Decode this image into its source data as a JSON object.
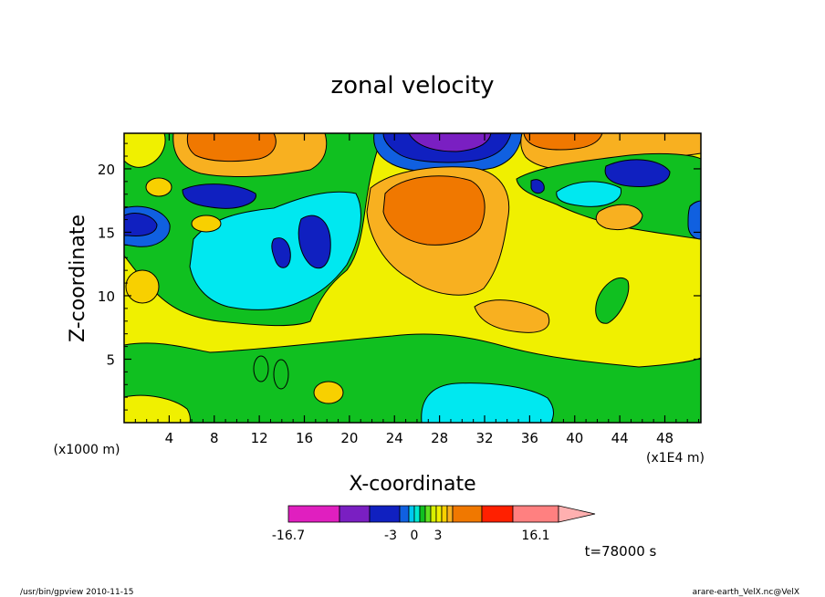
{
  "chart_data": {
    "type": "heatmap",
    "title": "zonal velocity",
    "xlabel": "X-coordinate",
    "ylabel": "Z-coordinate",
    "x_unit_label": "(x1000 m)",
    "x_scale_label": "(x1E4 m)",
    "xlim": [
      0,
      51.2
    ],
    "ylim": [
      0,
      22.8
    ],
    "x_ticks": [
      4,
      8,
      12,
      16,
      20,
      24,
      28,
      32,
      36,
      40,
      44,
      48
    ],
    "y_ticks": [
      5,
      10,
      15,
      20
    ],
    "colorbar": {
      "min_label": "-16.7",
      "max_label": "16.1",
      "mid_labels": [
        "-3",
        "0",
        "3"
      ],
      "colors": [
        "#e01fbf",
        "#7a1fc2",
        "#1020c0",
        "#1060e0",
        "#00c8f0",
        "#00e8d0",
        "#10c020",
        "#60e020",
        "#d8f000",
        "#f0f000",
        "#f8d000",
        "#f8b020",
        "#f07800",
        "#ff2000",
        "#ff8080",
        "#ffb0b0"
      ]
    },
    "annotation": "t=78000 s"
  },
  "footer": {
    "left": "/usr/bin/gpview  2010-11-15",
    "right": "arare-earth_VelX.nc@VelX"
  }
}
